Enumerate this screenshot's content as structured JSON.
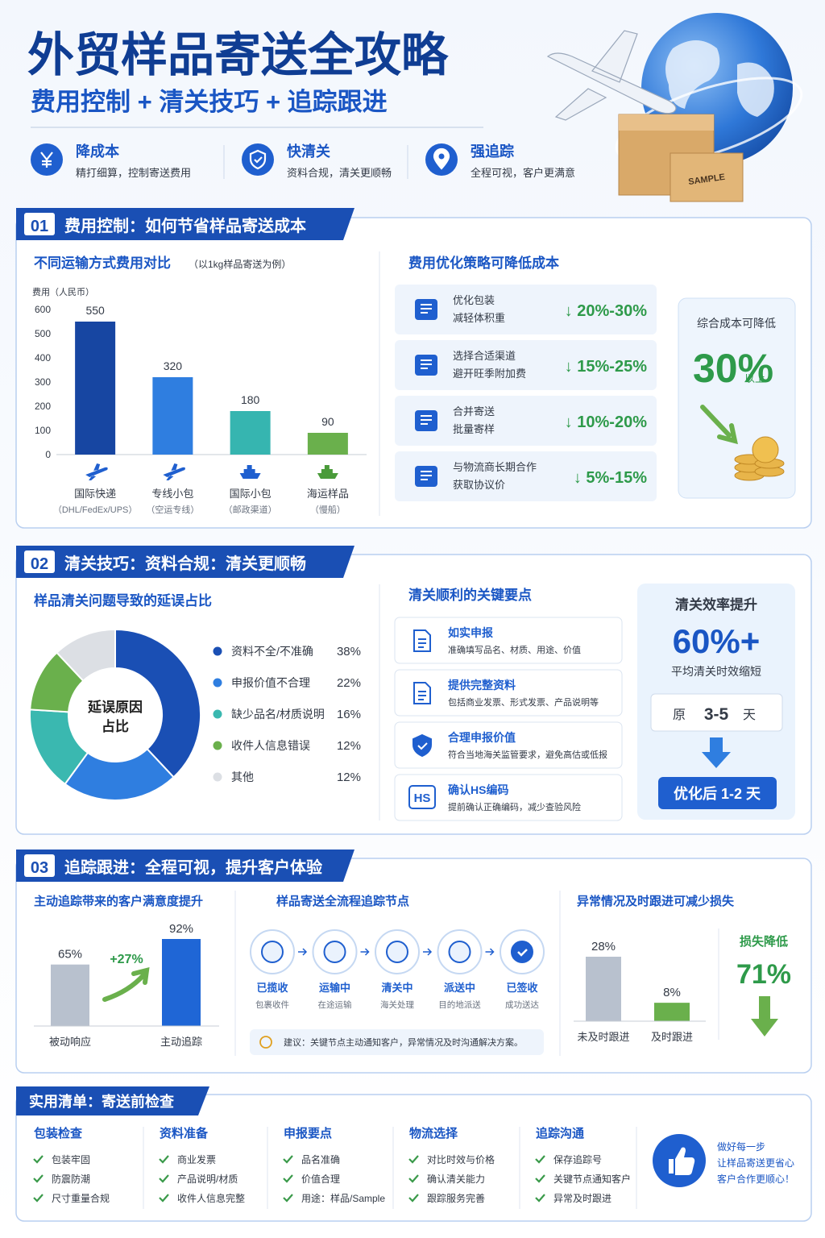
{
  "header": {
    "title": "外贸样品寄送全攻略",
    "subtitle": "费用控制 + 清关技巧 + 追踪跟进",
    "illustration_label": "SAMPLE"
  },
  "features": [
    {
      "title": "降成本",
      "desc": "精打细算，控制寄送费用"
    },
    {
      "title": "快清关",
      "desc": "资料合规，清关更顺畅"
    },
    {
      "title": "强追踪",
      "desc": "全程可视，客户更满意"
    }
  ],
  "sections": [
    {
      "number": "01",
      "title": "费用控制：如何节省样品寄送成本"
    },
    {
      "number": "02",
      "title": "清关技巧：资料合规：清关更顺畅"
    },
    {
      "number": "03",
      "title": "追踪跟进：全程可视，提升客户体验"
    }
  ],
  "strategies": {
    "title": "费用优化策略可降低成本",
    "items": [
      {
        "lines": [
          "优化包装",
          "减轻体积重"
        ],
        "reduction": "↓ 20%-30%"
      },
      {
        "lines": [
          "选择合适渠道",
          "避开旺季附加费"
        ],
        "reduction": "↓ 15%-25%"
      },
      {
        "lines": [
          "合并寄送",
          "批量寄样"
        ],
        "reduction": "↓ 10%-20%"
      },
      {
        "lines": [
          "与物流商长期合作",
          "获取协议价"
        ],
        "reduction": "↓ 5%-15%"
      }
    ]
  },
  "cost_summary": {
    "label": "综合成本可降低",
    "value": "30%",
    "suffix": "以上"
  },
  "clearance_points": {
    "title": "清关顺利的关键要点",
    "items": [
      {
        "title": "如实申报",
        "desc": "准确填写品名、材质、用途、价值"
      },
      {
        "title": "提供完整资料",
        "desc": "包括商业发票、形式发票、产品说明等"
      },
      {
        "title": "合理申报价值",
        "desc": "符合当地海关监管要求，避免高估或低报"
      },
      {
        "title": "确认HS编码",
        "desc": "提前确认正确编码，减少查验风险",
        "icon_label": "HS"
      }
    ]
  },
  "clearance_efficiency": {
    "title": "清关效率提升",
    "value": "60%+",
    "subtitle": "平均清关时效缩短",
    "before": {
      "label": "原",
      "days": "3-5",
      "unit": "天"
    },
    "after": "优化后 1-2 天"
  },
  "tracking_process": {
    "title": "样品寄送全流程追踪节点",
    "steps": [
      {
        "name": "已揽收",
        "desc": "包裹收件"
      },
      {
        "name": "运输中",
        "desc": "在途运输"
      },
      {
        "name": "清关中",
        "desc": "海关处理"
      },
      {
        "name": "派送中",
        "desc": "目的地派送"
      },
      {
        "name": "已签收",
        "desc": "成功送达"
      }
    ],
    "tip": "建议：关键节点主动通知客户，异常情况及时沟通解决方案。"
  },
  "checklist": {
    "title": "实用清单：寄送前检查",
    "columns": [
      {
        "heading": "包装检查",
        "items": [
          "包装牢固",
          "防震防潮",
          "尺寸重量合规"
        ]
      },
      {
        "heading": "资料准备",
        "items": [
          "商业发票",
          "产品说明/材质",
          "收件人信息完整"
        ]
      },
      {
        "heading": "申报要点",
        "items": [
          "品名准确",
          "价值合理",
          "用途：样品/Sample"
        ]
      },
      {
        "heading": "物流选择",
        "items": [
          "对比时效与价格",
          "确认清关能力",
          "跟踪服务完善"
        ]
      },
      {
        "heading": "追踪沟通",
        "items": [
          "保存追踪号",
          "关键节点通知客户",
          "异常及时跟进"
        ]
      }
    ],
    "closing": [
      "做好每一步",
      "让样品寄送更省心",
      "客户合作更顺心！"
    ]
  },
  "chart_data": [
    {
      "type": "bar",
      "title": "不同运输方式费用对比",
      "subtitle": "（以1kg样品寄送为例）",
      "y_label": "费用（人民币）",
      "categories": [
        "国际快递",
        "专线小包",
        "国际小包",
        "海运样品"
      ],
      "category_notes": [
        "（DHL/FedEx/UPS）",
        "（空运专线）",
        "（邮政渠道）",
        "（慢船）"
      ],
      "values": [
        550,
        320,
        180,
        90
      ],
      "colors": [
        "#1746a2",
        "#2f7ee0",
        "#36b5b0",
        "#6ab04c"
      ],
      "ylim": [
        0,
        600
      ],
      "yticks": [
        0,
        100,
        200,
        300,
        400,
        500,
        600
      ],
      "grid": false
    },
    {
      "type": "donut",
      "title": "样品清关问题导致的延误占比",
      "center_label": [
        "延误原因",
        "占比"
      ],
      "categories": [
        "资料不全/不准确",
        "申报价值不合理",
        "缺少品名/材质说明",
        "收件人信息错误",
        "其他"
      ],
      "values": [
        38,
        22,
        16,
        12,
        12
      ],
      "value_labels": [
        "38%",
        "22%",
        "16%",
        "12%",
        "12%"
      ],
      "colors": [
        "#1a4fb4",
        "#2f7ee0",
        "#3ab8b0",
        "#6ab04c",
        "#dcdfe4"
      ]
    },
    {
      "type": "bar",
      "title": "主动追踪带来的客户满意度提升",
      "categories": [
        "被动响应",
        "主动追踪"
      ],
      "values": [
        65,
        92
      ],
      "value_labels": [
        "65%",
        "92%"
      ],
      "colors": [
        "#b8c1ce",
        "#1f66d6"
      ],
      "annotation": "+27%"
    },
    {
      "type": "bar",
      "title": "异常情况及时跟进可减少损失",
      "categories": [
        "未及时跟进",
        "及时跟进"
      ],
      "values": [
        28,
        8
      ],
      "value_labels": [
        "28%",
        "8%"
      ],
      "colors": [
        "#b8c1ce",
        "#6ab04c"
      ],
      "annotation_title": "损失降低",
      "annotation": "71%"
    }
  ]
}
